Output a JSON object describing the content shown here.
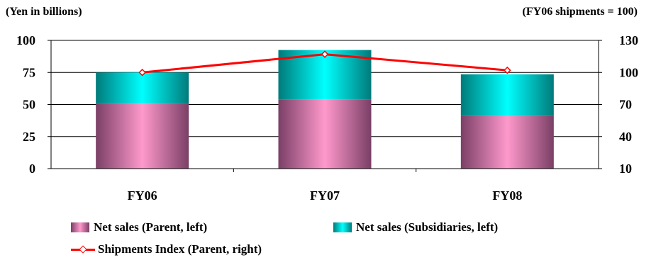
{
  "units": {
    "left": "(Yen in billions)",
    "right": "(FY06 shipments = 100)"
  },
  "chart_data": {
    "type": "bar",
    "stacked": true,
    "categories": [
      "FY06",
      "FY07",
      "FY08"
    ],
    "series": [
      {
        "name": "Net sales (Parent, left)",
        "axis": "left",
        "values": [
          51,
          54,
          41
        ],
        "color": "#ff99cc"
      },
      {
        "name": "Net sales (Subsidiaries, left)",
        "axis": "left",
        "values": [
          24,
          38.5,
          32.5
        ],
        "color": "#00ffff"
      },
      {
        "name": "Shipments Index (Parent, right)",
        "axis": "right",
        "type": "line",
        "values": [
          100,
          117,
          102
        ],
        "color": "#ff0000"
      }
    ],
    "y_left": {
      "range": [
        0,
        100
      ],
      "ticks": [
        0,
        25,
        50,
        75,
        100
      ]
    },
    "y_right": {
      "range": [
        10,
        130
      ],
      "ticks": [
        10,
        40,
        70,
        100,
        130
      ]
    },
    "grid": true,
    "legend": "bottom"
  }
}
